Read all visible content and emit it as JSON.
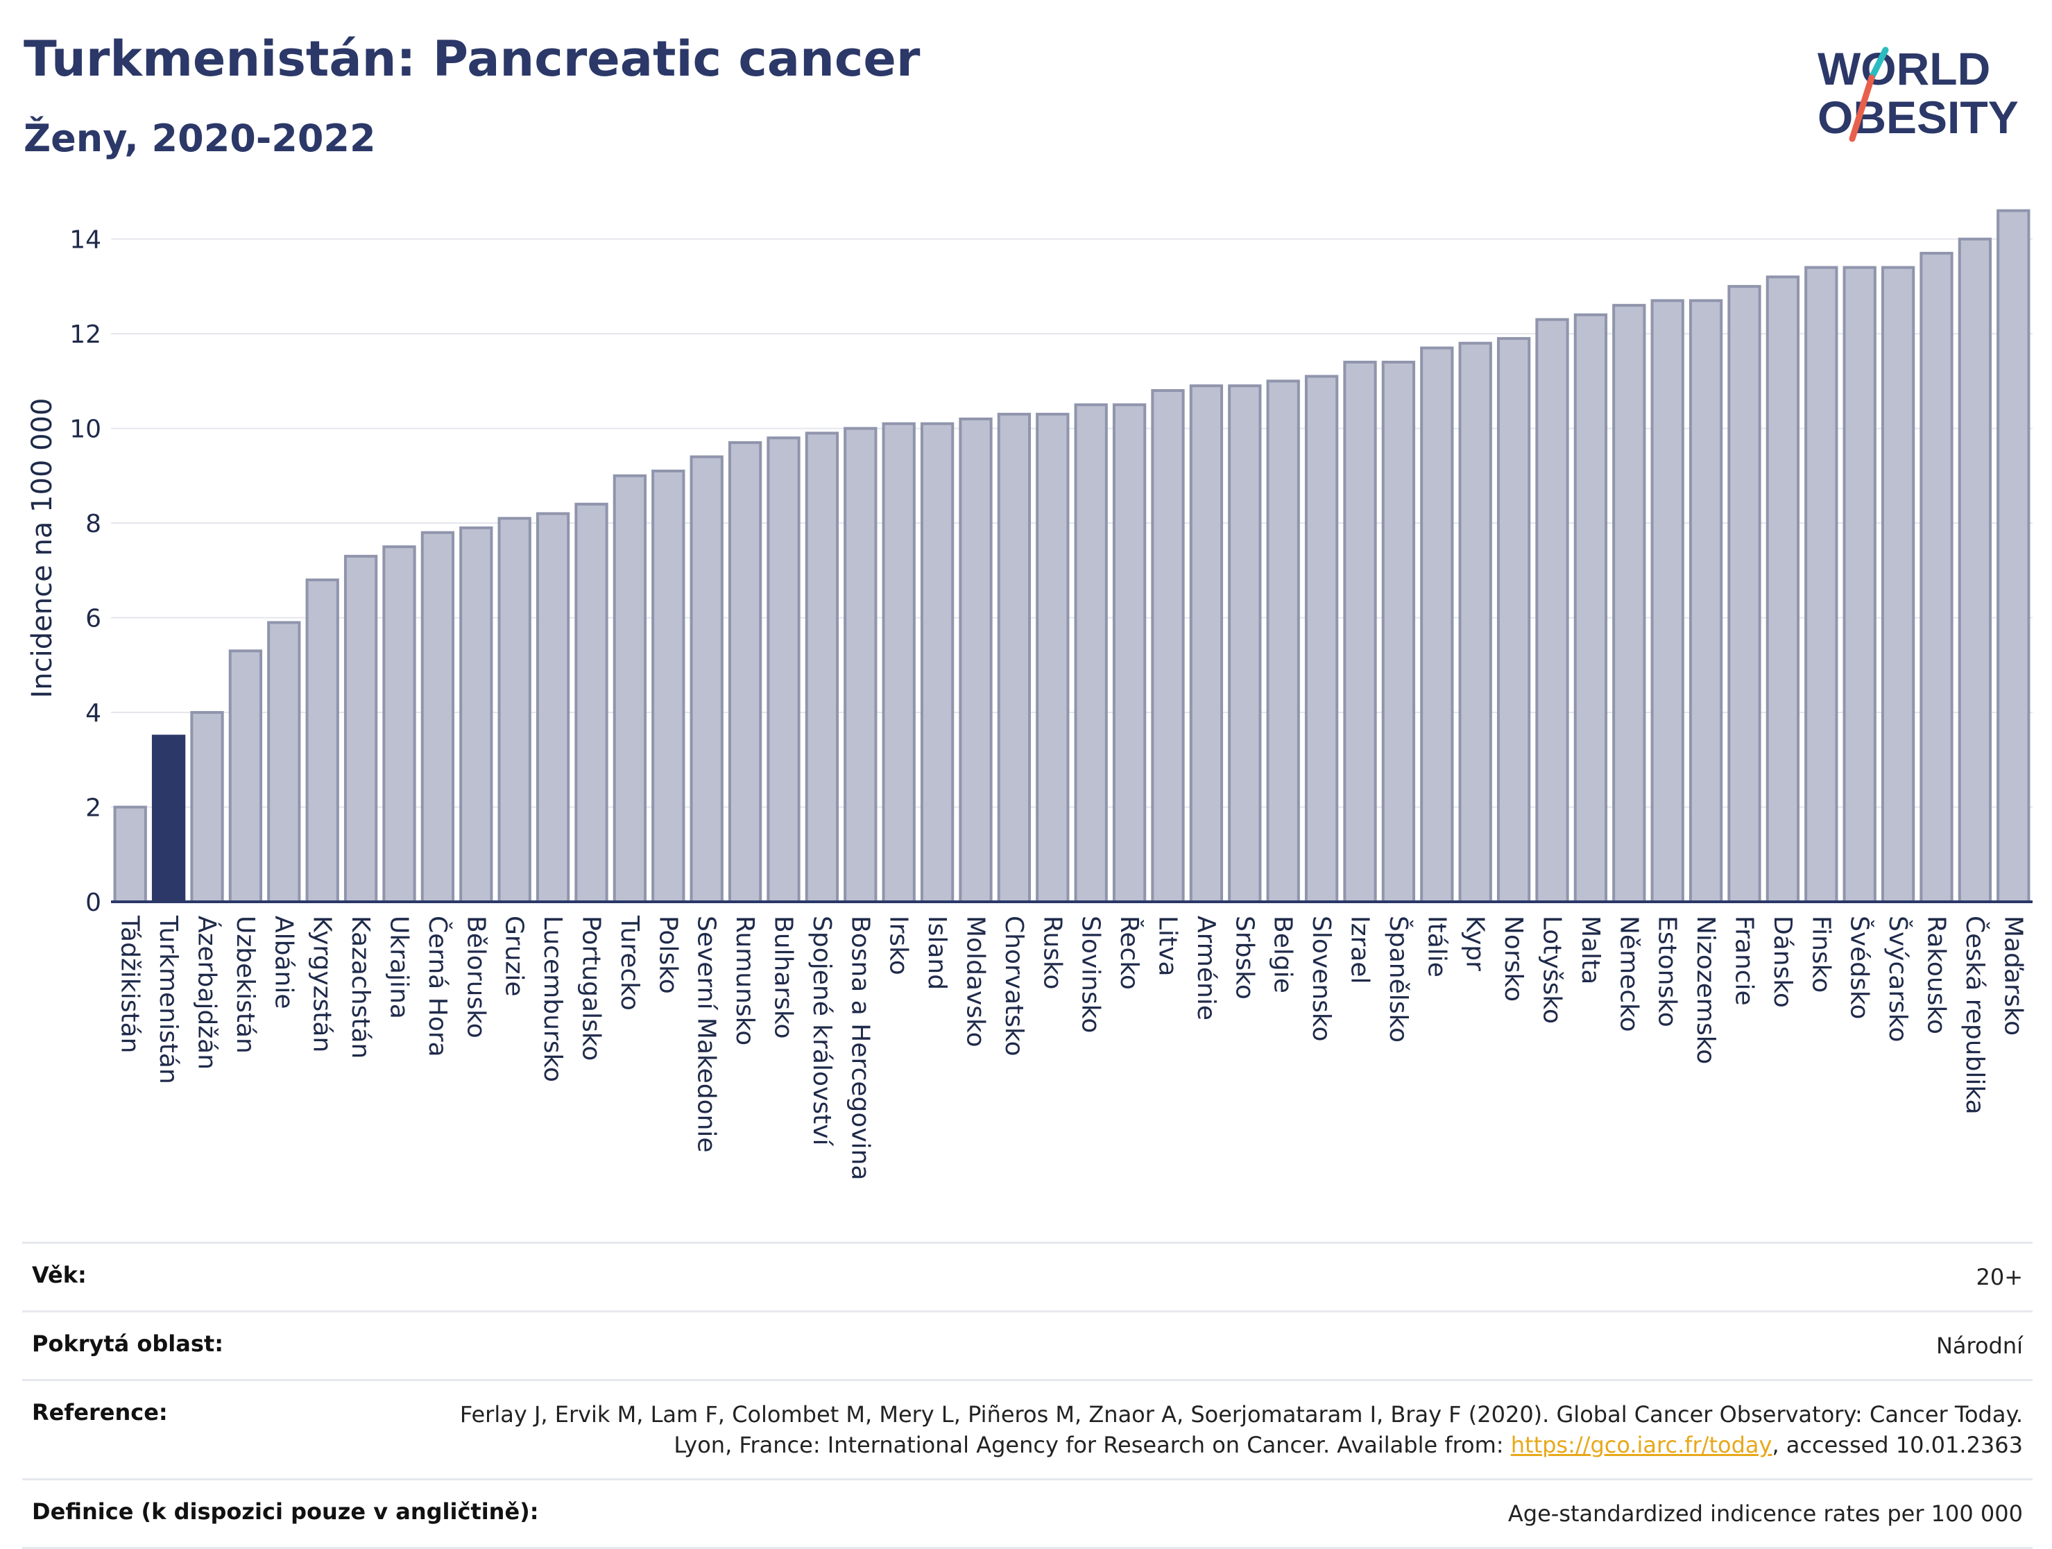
{
  "header": {
    "title": "Turkmenistán: Pancreatic cancer",
    "subtitle": "Ženy, 2020-2022",
    "logo_line1": "WORLD",
    "logo_line2": "OBESITY"
  },
  "colors": {
    "highlight": "#2b3868",
    "bar_fill": "#bcc0d0",
    "bar_stroke": "#9095ad",
    "title": "#2b3868",
    "logo_accent_teal": "#2bbcc0",
    "logo_accent_red": "#e8604c",
    "link": "#e8a81a"
  },
  "chart_data": {
    "type": "bar",
    "title": "Turkmenistán: Pancreatic cancer",
    "subtitle": "Ženy, 2020-2022",
    "ylabel": "Incidence na 100 000",
    "xlabel": "",
    "ylim": [
      0,
      14.8
    ],
    "yticks": [
      0,
      2,
      4,
      6,
      8,
      10,
      12,
      14
    ],
    "grid": true,
    "highlight_category": "Turkmenistán",
    "categories": [
      "Tádžikistán",
      "Turkmenistán",
      "Ázerbajdžán",
      "Uzbekistán",
      "Albánie",
      "Kyrgyzstán",
      "Kazachstán",
      "Ukrajina",
      "Černá Hora",
      "Bělorusko",
      "Gruzie",
      "Lucembursko",
      "Portugalsko",
      "Turecko",
      "Polsko",
      "Severní Makedonie",
      "Rumunsko",
      "Bulharsko",
      "Spojené království",
      "Bosna a Hercegovina",
      "Irsko",
      "Island",
      "Moldavsko",
      "Chorvatsko",
      "Rusko",
      "Slovinsko",
      "Řecko",
      "Litva",
      "Arménie",
      "Srbsko",
      "Belgie",
      "Slovensko",
      "Izrael",
      "Španělsko",
      "Itálie",
      "Kypr",
      "Norsko",
      "Lotyšsko",
      "Malta",
      "Německo",
      "Estonsko",
      "Nizozemsko",
      "Francie",
      "Dánsko",
      "Finsko",
      "Švédsko",
      "Švýcarsko",
      "Rakousko",
      "Česká republika",
      "Maďarsko"
    ],
    "values": [
      2.0,
      3.5,
      4.0,
      5.3,
      5.9,
      6.8,
      7.3,
      7.5,
      7.8,
      7.9,
      8.1,
      8.2,
      8.4,
      9.0,
      9.1,
      9.4,
      9.7,
      9.8,
      9.9,
      10.0,
      10.1,
      10.1,
      10.2,
      10.3,
      10.3,
      10.5,
      10.5,
      10.8,
      10.9,
      10.9,
      11.0,
      11.1,
      11.4,
      11.4,
      11.7,
      11.8,
      11.9,
      12.3,
      12.4,
      12.6,
      12.7,
      12.7,
      13.0,
      13.2,
      13.4,
      13.4,
      13.4,
      13.7,
      14.0,
      14.6
    ]
  },
  "meta": {
    "age_label": "Věk:",
    "age_value": "20+",
    "area_label": "Pokrytá oblast:",
    "area_value": "Národní",
    "ref_label": "Reference:",
    "ref_text_1": "Ferlay J, Ervik M, Lam F, Colombet M, Mery L, Piñeros M, Znaor A, Soerjomataram I, Bray F (2020). Global Cancer Observatory: Cancer Today. Lyon, France: International Agency for Research on Cancer. Available from: ",
    "ref_link": "https://gco.iarc.fr/today",
    "ref_text_2": ", accessed 10.01.2363",
    "def_label": "Definice (k dispozici pouze v angličtině):",
    "def_value": "Age-standardized indicence rates per 100 000"
  }
}
